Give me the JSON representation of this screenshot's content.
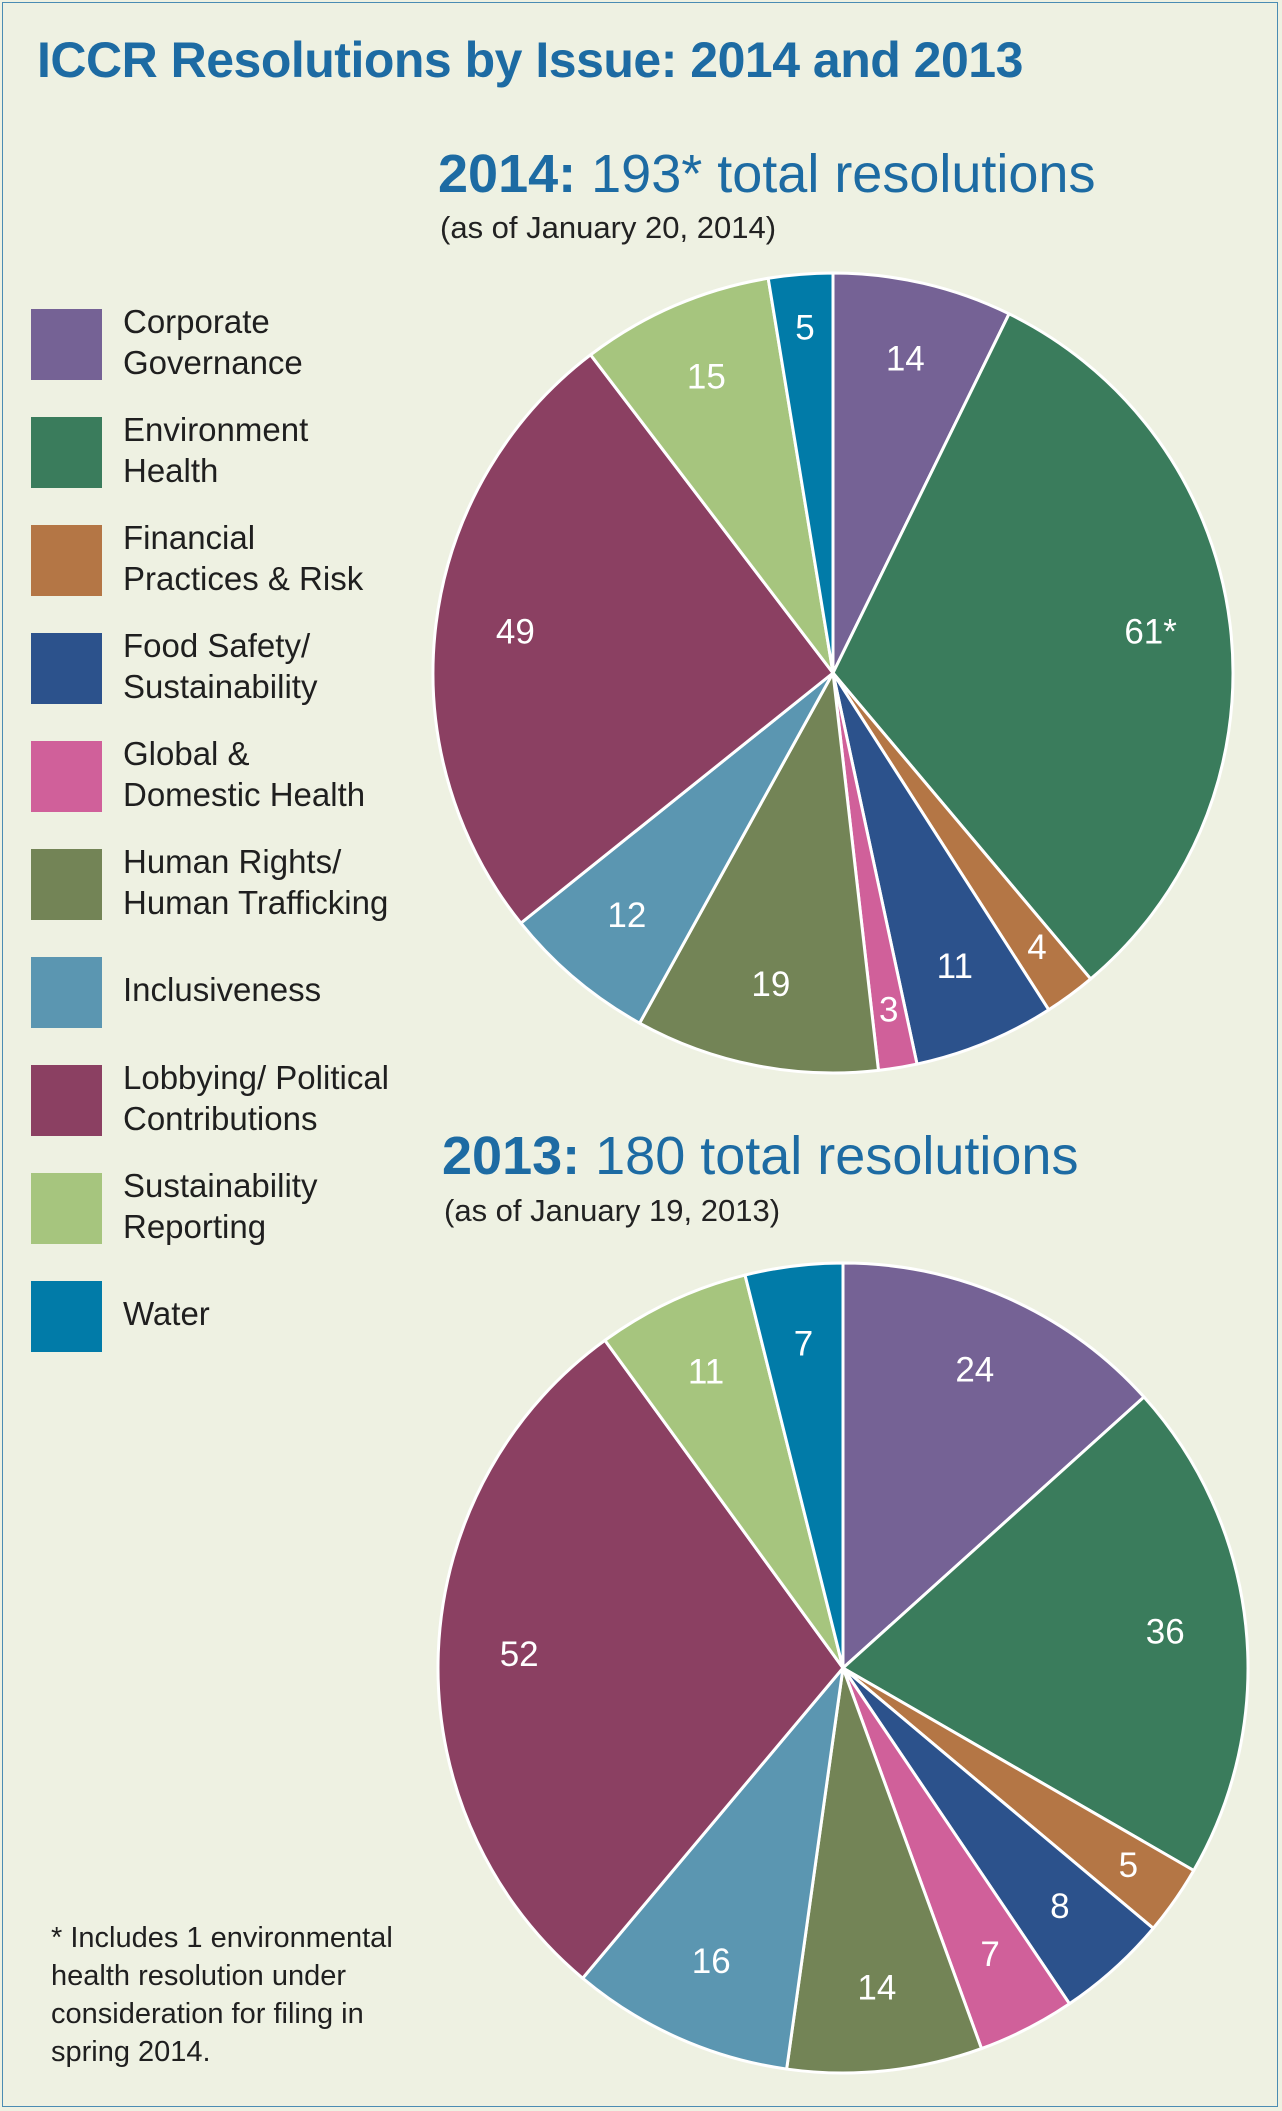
{
  "title": "ICCR Resolutions by Issue: 2014 and 2013",
  "legend": [
    {
      "label": "Corporate\nGovernance",
      "color": "#756295"
    },
    {
      "label": "Environment\nHealth",
      "color": "#3a7c5c"
    },
    {
      "label": "Financial\nPractices & Risk",
      "color": "#b47645"
    },
    {
      "label": "Food Safety/\nSustainability",
      "color": "#2c528c"
    },
    {
      "label": "Global &\nDomestic Health",
      "color": "#d0609a"
    },
    {
      "label": "Human Rights/\nHuman Trafficking",
      "color": "#738456"
    },
    {
      "label": "Inclusiveness",
      "color": "#5b96b1"
    },
    {
      "label": "Lobbying/ Political\nContributions",
      "color": "#8b4062"
    },
    {
      "label": "Sustainability\nReporting",
      "color": "#a6c57e"
    },
    {
      "label": "Water",
      "color": "#017ba8"
    }
  ],
  "footnote": "* Includes 1 environmental health resolution under consideration for filing in spring 2014.",
  "chart_data": [
    {
      "type": "pie",
      "heading_year": "2014:",
      "heading_rest": " 193* total resolutions",
      "subtitle": "(as of January 20, 2014)",
      "categories": [
        "Corporate Governance",
        "Environment Health",
        "Financial Practices & Risk",
        "Food Safety/ Sustainability",
        "Global & Domestic Health",
        "Human Rights/ Human Trafficking",
        "Inclusiveness",
        "Lobbying/ Political Contributions",
        "Sustainability Reporting",
        "Water"
      ],
      "values": [
        14,
        61,
        4,
        11,
        3,
        19,
        12,
        49,
        15,
        5
      ],
      "labels": [
        "14",
        "61*",
        "4",
        "11",
        "3",
        "19",
        "12",
        "49",
        "15",
        "5"
      ],
      "colors": [
        "#756295",
        "#3a7c5c",
        "#b47645",
        "#2c528c",
        "#d0609a",
        "#738456",
        "#5b96b1",
        "#8b4062",
        "#a6c57e",
        "#017ba8"
      ]
    },
    {
      "type": "pie",
      "heading_year": "2013:",
      "heading_rest": " 180 total resolutions",
      "subtitle": "(as of January 19, 2013)",
      "categories": [
        "Corporate Governance",
        "Environment Health",
        "Financial Practices & Risk",
        "Food Safety/ Sustainability",
        "Global & Domestic Health",
        "Human Rights/ Human Trafficking",
        "Inclusiveness",
        "Lobbying/ Political Contributions",
        "Sustainability Reporting",
        "Water"
      ],
      "values": [
        24,
        36,
        5,
        8,
        7,
        14,
        16,
        52,
        11,
        7
      ],
      "labels": [
        "24",
        "36",
        "5",
        "8",
        "7",
        "14",
        "16",
        "52",
        "11",
        "7"
      ],
      "colors": [
        "#756295",
        "#3a7c5c",
        "#b47645",
        "#2c528c",
        "#d0609a",
        "#738456",
        "#5b96b1",
        "#8b4062",
        "#a6c57e",
        "#017ba8"
      ]
    }
  ]
}
